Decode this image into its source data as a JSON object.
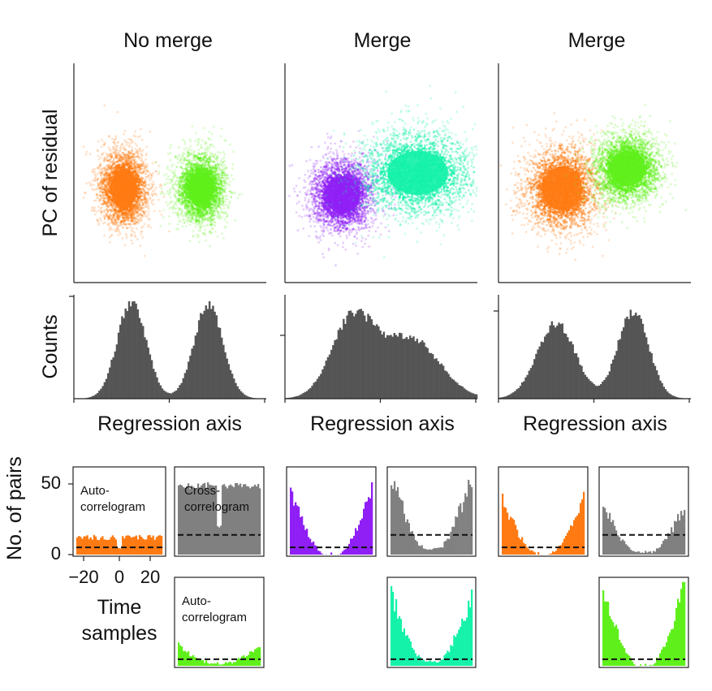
{
  "colors": {
    "orange": "#ff7a12",
    "green": "#5ff01b",
    "purple": "#8f1ff5",
    "teal": "#14f2a9",
    "gray": "#555555",
    "gray_light": "#808080"
  },
  "columns": [
    {
      "title": "No merge"
    },
    {
      "title": "Merge"
    },
    {
      "title": "Merge"
    }
  ],
  "labels": {
    "pc_residual": "PC of residual",
    "counts": "Counts",
    "regression_axis": "Regression axis",
    "no_pairs": "No. of pairs",
    "time": "Time",
    "samples": "samples",
    "auto_a": "Auto-",
    "auto_b": "correlogram",
    "cross_a": "Cross-",
    "cross_b": "correlogram"
  },
  "chart_data": [
    {
      "type": "scatter",
      "panel": "column-1",
      "clusters": [
        {
          "color": "orange",
          "center": [
            0.26,
            0.57
          ],
          "spread": [
            0.065,
            0.09
          ]
        },
        {
          "color": "green",
          "center": [
            0.66,
            0.57
          ],
          "spread": [
            0.065,
            0.08
          ]
        }
      ],
      "ylabel": "PC of residual"
    },
    {
      "type": "scatter",
      "panel": "column-2",
      "clusters": [
        {
          "color": "purple",
          "center": [
            0.3,
            0.6
          ],
          "spread": [
            0.085,
            0.085
          ]
        },
        {
          "color": "teal",
          "center": [
            0.69,
            0.5
          ],
          "spread": [
            0.15,
            0.1
          ]
        }
      ]
    },
    {
      "type": "scatter",
      "panel": "column-3",
      "clusters": [
        {
          "color": "orange",
          "center": [
            0.33,
            0.57
          ],
          "spread": [
            0.1,
            0.1
          ]
        },
        {
          "color": "green",
          "center": [
            0.67,
            0.48
          ],
          "spread": [
            0.09,
            0.08
          ]
        }
      ]
    },
    {
      "type": "bar",
      "panel": "histogram-column-1",
      "xlabel": "Regression axis",
      "ylabel": "Counts",
      "modes": [
        {
          "mu": 0.3,
          "sigma": 0.075,
          "amp": 1.0
        },
        {
          "mu": 0.7,
          "sigma": 0.075,
          "amp": 0.97
        }
      ]
    },
    {
      "type": "bar",
      "panel": "histogram-column-2",
      "xlabel": "Regression axis",
      "modes": [
        {
          "mu": 0.35,
          "sigma": 0.11,
          "amp": 0.8
        },
        {
          "mu": 0.65,
          "sigma": 0.15,
          "amp": 0.62
        }
      ]
    },
    {
      "type": "bar",
      "panel": "histogram-column-3",
      "xlabel": "Regression axis",
      "modes": [
        {
          "mu": 0.3,
          "sigma": 0.1,
          "amp": 0.77
        },
        {
          "mu": 0.7,
          "sigma": 0.08,
          "amp": 0.9
        }
      ]
    },
    {
      "type": "bar",
      "panel": "correlograms",
      "ylabel": "No. of pairs",
      "xlabel": "Time samples",
      "x_ticks": [
        -20,
        0,
        20
      ],
      "y_ticks": [
        0,
        50
      ],
      "xlim": [
        -25,
        25
      ],
      "ylim": [
        0,
        63
      ],
      "panels": [
        {
          "id": "c1-auto-orange",
          "kind": "auto",
          "color": "orange",
          "level": 15,
          "floor": 11,
          "baseline": 5.5,
          "label": "auto"
        },
        {
          "id": "c1-cross",
          "kind": "cross",
          "color": "gray_light",
          "level": 55,
          "floor": 50,
          "baseline": 15,
          "label": "cross"
        },
        {
          "id": "c1-auto-green",
          "kind": "auto",
          "color": "green",
          "edge": 15,
          "floor": 1,
          "baseline": 5,
          "label": "auto"
        },
        {
          "id": "c2-auto-purple",
          "kind": "auto",
          "color": "purple",
          "edge": 48,
          "floor": 0,
          "baseline": 5.5
        },
        {
          "id": "c2-cross",
          "kind": "cross",
          "color": "gray_light",
          "edge": 62,
          "floor": 4,
          "baseline": 15
        },
        {
          "id": "c2-auto-teal",
          "kind": "auto",
          "color": "teal",
          "edge": 55,
          "floor": 3,
          "baseline": 5
        },
        {
          "id": "c3-auto-orange",
          "kind": "auto",
          "color": "orange",
          "edge": 42,
          "floor": 0,
          "baseline": 5.5
        },
        {
          "id": "c3-cross",
          "kind": "cross",
          "color": "gray_light",
          "edge": 38,
          "floor": 1,
          "baseline": 15
        },
        {
          "id": "c3-auto-green",
          "kind": "auto",
          "color": "green",
          "edge": 62,
          "floor": 0,
          "baseline": 5
        }
      ]
    }
  ]
}
